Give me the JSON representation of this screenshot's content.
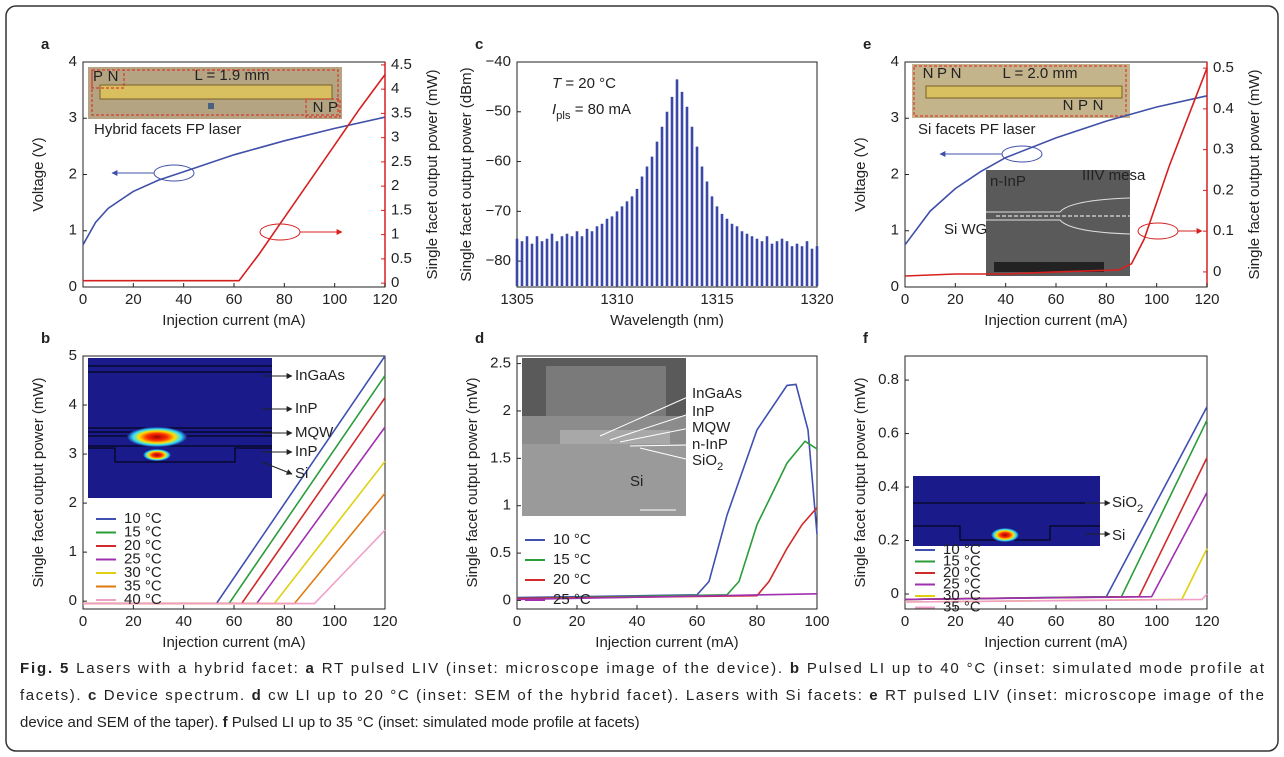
{
  "chart_data": [
    {
      "type": "line",
      "panel": "a",
      "xlabel": "Injection current (mA)",
      "ylabel": "Voltage (V)",
      "y2label": "Single facet output power (mW)",
      "xlim": [
        0,
        120
      ],
      "xticks": [
        0,
        20,
        40,
        60,
        80,
        100,
        120
      ],
      "ylim": [
        0,
        4
      ],
      "yticks": [
        0,
        1,
        2,
        3,
        4
      ],
      "y2lim": [
        -0.08,
        4.56
      ],
      "y2ticks": [
        0,
        0.5,
        1,
        1.5,
        2,
        2.5,
        3,
        3.5,
        4,
        4.5
      ],
      "series": [
        {
          "color": "#4050a8",
          "x": [
            0,
            5,
            10,
            20,
            30,
            40,
            60,
            80,
            100,
            120
          ],
          "values": [
            0.75,
            1.15,
            1.4,
            1.7,
            1.9,
            2.05,
            2.35,
            2.6,
            2.82,
            3.02
          ]
        },
        {
          "color": "#d62020",
          "axis": "y2",
          "x": [
            0,
            20,
            40,
            62,
            70,
            80,
            90,
            100,
            110,
            120
          ],
          "values": [
            0.05,
            0.05,
            0.05,
            0.05,
            0.6,
            1.35,
            2.1,
            2.85,
            3.6,
            4.3
          ]
        }
      ],
      "annotations": [
        "P",
        "N",
        "N",
        "P",
        "L = 1.9 mm",
        "Hybrid facets FP laser"
      ]
    },
    {
      "type": "line",
      "panel": "b",
      "xlabel": "Injection current (mA)",
      "ylabel": "Single facet output power (mW)",
      "xlim": [
        0,
        120
      ],
      "xticks": [
        0,
        20,
        40,
        60,
        80,
        100,
        120
      ],
      "ylim": [
        -0.16,
        5
      ],
      "yticks": [
        0,
        1,
        2,
        3,
        4,
        5
      ],
      "series": [
        {
          "name": "10 °C",
          "color": "#4050b0",
          "x": [
            0,
            53,
            120
          ],
          "values": [
            -0.05,
            -0.05,
            5.0
          ]
        },
        {
          "name": "15 °C",
          "color": "#2a9d3a",
          "x": [
            0,
            58,
            120
          ],
          "values": [
            -0.05,
            -0.05,
            4.6
          ]
        },
        {
          "name": "20 °C",
          "color": "#d02a2a",
          "x": [
            0,
            63,
            120
          ],
          "values": [
            -0.05,
            -0.05,
            4.15
          ]
        },
        {
          "name": "25 °C",
          "color": "#a030b0",
          "x": [
            0,
            69,
            120
          ],
          "values": [
            -0.05,
            -0.05,
            3.55
          ]
        },
        {
          "name": "30 °C",
          "color": "#e0d010",
          "x": [
            0,
            76,
            120
          ],
          "values": [
            -0.05,
            -0.05,
            2.85
          ]
        },
        {
          "name": "35 °C",
          "color": "#e07a10",
          "x": [
            0,
            84,
            120
          ],
          "values": [
            -0.05,
            -0.05,
            2.2
          ]
        },
        {
          "name": "40 °C",
          "color": "#f0a0c8",
          "x": [
            0,
            92,
            120
          ],
          "values": [
            -0.05,
            -0.05,
            1.45
          ]
        }
      ],
      "annotations": [
        "InGaAs",
        "InP",
        "MQW",
        "InP",
        "Si"
      ]
    },
    {
      "type": "spectrum",
      "panel": "c",
      "xlabel": "Wavelength (nm)",
      "ylabel": "Single facet output power (dBm)",
      "xlim": [
        1305,
        1320
      ],
      "xticks": [
        1305,
        1310,
        1315,
        1320
      ],
      "ylim": [
        -85.2,
        -40
      ],
      "yticks": [
        {
          "value": -80,
          "label": "−80"
        },
        {
          "value": -70,
          "label": "−70"
        },
        {
          "value": -60,
          "label": "−60"
        },
        {
          "value": -50,
          "label": "−50"
        },
        {
          "value": -40,
          "label": "−40"
        }
      ],
      "series": [
        {
          "color": "#3a48a8",
          "x": [
            1305,
            1305.25,
            1305.5,
            1305.75,
            1306,
            1306.25,
            1306.5,
            1306.75,
            1307,
            1307.25,
            1307.5,
            1307.75,
            1308,
            1308.25,
            1308.5,
            1308.75,
            1309,
            1309.25,
            1309.5,
            1309.75,
            1310,
            1310.25,
            1310.5,
            1310.75,
            1311,
            1311.25,
            1311.5,
            1311.75,
            1312,
            1312.25,
            1312.5,
            1312.75,
            1313,
            1313.25,
            1313.5,
            1313.75,
            1314,
            1314.25,
            1314.5,
            1314.75,
            1315,
            1315.25,
            1315.5,
            1315.75,
            1316,
            1316.25,
            1316.5,
            1316.75,
            1317,
            1317.25,
            1317.5,
            1317.75,
            1318,
            1318.25,
            1318.5,
            1318.75,
            1319,
            1319.25,
            1319.5,
            1319.75,
            1320
          ],
          "values": [
            -75.5,
            -76,
            -75,
            -76.5,
            -75,
            -76,
            -75.5,
            -74.5,
            -76,
            -75,
            -74.5,
            -75,
            -74,
            -75,
            -73.5,
            -74,
            -73,
            -72.5,
            -71.5,
            -71,
            -70,
            -69,
            -68,
            -67,
            -65.5,
            -63,
            -61,
            -59,
            -56,
            -53,
            -50,
            -47,
            -43.5,
            -46,
            -49,
            -53,
            -57,
            -61,
            -64,
            -67,
            -69,
            -70.5,
            -71.5,
            -72.5,
            -73,
            -74,
            -74.5,
            -75,
            -75.5,
            -76,
            -75,
            -76.5,
            -76,
            -75.5,
            -76,
            -77,
            -76.5,
            -77,
            -76,
            -77.5,
            -77
          ]
        }
      ],
      "annotations": [
        [
          {
            "text": "T",
            "italic": true
          },
          {
            "text": " = 20 °C"
          }
        ],
        [
          {
            "text": "I",
            "italic": true
          },
          {
            "text": "pls",
            "sub": true
          },
          {
            "text": " = 80 mA"
          }
        ]
      ]
    },
    {
      "type": "line",
      "panel": "d",
      "xlabel": "Injection current (mA)",
      "ylabel": "Single facet output power (mW)",
      "xlim": [
        0,
        100
      ],
      "xticks": [
        0,
        20,
        40,
        60,
        80,
        100
      ],
      "ylim": [
        -0.09,
        2.58
      ],
      "yticks": [
        0,
        0.5,
        1,
        1.5,
        2,
        2.5
      ],
      "series": [
        {
          "name": "10 °C",
          "color": "#4050b0",
          "x": [
            0,
            60,
            64,
            70,
            80,
            90,
            93,
            97,
            100
          ],
          "values": [
            0.03,
            0.06,
            0.2,
            0.9,
            1.8,
            2.27,
            2.28,
            1.8,
            0.7
          ]
        },
        {
          "name": "15 °C",
          "color": "#2a9d3a",
          "x": [
            0,
            70,
            74,
            80,
            90,
            96,
            100
          ],
          "values": [
            0.02,
            0.06,
            0.2,
            0.8,
            1.45,
            1.68,
            1.6
          ]
        },
        {
          "name": "20 °C",
          "color": "#d02a2a",
          "x": [
            0,
            80,
            84,
            90,
            95,
            100
          ],
          "values": [
            0.02,
            0.05,
            0.2,
            0.55,
            0.8,
            0.98
          ]
        },
        {
          "name": "25 °C",
          "color": "#a030b0",
          "x": [
            0,
            100
          ],
          "values": [
            0.01,
            0.07
          ]
        }
      ],
      "annotations": [
        "InGaAs",
        "InP",
        "MQW",
        "n-InP",
        [
          {
            "text": "SiO"
          },
          {
            "text": "2",
            "sub": true
          }
        ],
        "Si"
      ]
    },
    {
      "type": "line",
      "panel": "e",
      "xlabel": "Injection current (mA)",
      "ylabel": "Voltage (V)",
      "y2label": "Single facet output power (mW)",
      "xlim": [
        0,
        120
      ],
      "xticks": [
        0,
        20,
        40,
        60,
        80,
        100,
        120
      ],
      "ylim": [
        0,
        4
      ],
      "yticks": [
        0,
        1,
        2,
        3,
        4
      ],
      "y2lim": [
        -0.037,
        0.515
      ],
      "y2ticks": [
        0,
        0.1,
        0.2,
        0.3,
        0.4,
        0.5
      ],
      "series": [
        {
          "color": "#4050a8",
          "x": [
            0,
            10,
            20,
            30,
            40,
            60,
            80,
            100,
            120
          ],
          "values": [
            0.75,
            1.35,
            1.75,
            2.05,
            2.3,
            2.65,
            2.95,
            3.2,
            3.4
          ]
        },
        {
          "color": "#d62020",
          "axis": "y2",
          "x": [
            0,
            20,
            40,
            60,
            85,
            90,
            95,
            100,
            105,
            110,
            115,
            120
          ],
          "values": [
            -0.01,
            -0.005,
            -0.005,
            0,
            0.005,
            0.02,
            0.08,
            0.17,
            0.26,
            0.34,
            0.42,
            0.5
          ]
        }
      ],
      "annotations": [
        "N",
        "P",
        "N",
        "L = 2.0 mm",
        "N",
        "P",
        "N",
        "Si facets PF laser",
        "n-InP",
        "IIIV mesa",
        "Si WG"
      ]
    },
    {
      "type": "line",
      "panel": "f",
      "xlabel": "Injection current (mA)",
      "ylabel": "Single facet output power (mW)",
      "xlim": [
        0,
        120
      ],
      "xticks": [
        0,
        20,
        40,
        60,
        80,
        100,
        120
      ],
      "ylim": [
        -0.056,
        0.89
      ],
      "yticks": [
        0,
        0.2,
        0.4,
        0.6,
        0.8
      ],
      "series": [
        {
          "name": "10 °C",
          "color": "#4050b0",
          "x": [
            0,
            80,
            120
          ],
          "values": [
            -0.02,
            -0.01,
            0.7
          ]
        },
        {
          "name": "15 °C",
          "color": "#2a9d3a",
          "x": [
            0,
            86,
            120
          ],
          "values": [
            -0.02,
            -0.01,
            0.65
          ]
        },
        {
          "name": "20 °C",
          "color": "#d02a2a",
          "x": [
            0,
            93,
            120
          ],
          "values": [
            -0.02,
            -0.01,
            0.51
          ]
        },
        {
          "name": "25 °C",
          "color": "#a030b0",
          "x": [
            0,
            98,
            120
          ],
          "values": [
            -0.02,
            -0.01,
            0.38
          ]
        },
        {
          "name": "30 °C",
          "color": "#e0d010",
          "x": [
            0,
            110,
            120
          ],
          "values": [
            -0.03,
            -0.02,
            0.17
          ]
        },
        {
          "name": "35 °C",
          "color": "#f0a0c8",
          "x": [
            0,
            118,
            120
          ],
          "values": [
            -0.03,
            -0.02,
            0.0
          ]
        }
      ],
      "annotations": [
        [
          {
            "text": "SiO"
          },
          {
            "text": "2",
            "sub": true
          }
        ],
        "Si"
      ]
    }
  ],
  "caption": {
    "lines": [
      [
        {
          "text": "Fig. 5",
          "bold": true
        },
        {
          "text": " Lasers with a hybrid facet: "
        },
        {
          "text": "a",
          "bold": true
        },
        {
          "text": " RT pulsed LIV (inset: microscope image of the device). "
        },
        {
          "text": "b",
          "bold": true
        },
        {
          "text": " Pulsed LI up to 40 °C (inset: simulated mode profile at"
        }
      ],
      [
        {
          "text": "facets). "
        },
        {
          "text": "c",
          "bold": true
        },
        {
          "text": " Device spectrum. "
        },
        {
          "text": "d",
          "bold": true
        },
        {
          "text": " cw LI up to 20 °C (inset: SEM of the hybrid facet). Lasers with Si facets: "
        },
        {
          "text": "e",
          "bold": true
        },
        {
          "text": " RT pulsed LIV (inset: microscope image of the"
        }
      ],
      [
        {
          "text": "device and SEM of the taper). "
        },
        {
          "text": "f",
          "bold": true
        },
        {
          "text": " Pulsed LI up to 35 °C (inset: simulated mode profile at facets)"
        }
      ]
    ]
  }
}
